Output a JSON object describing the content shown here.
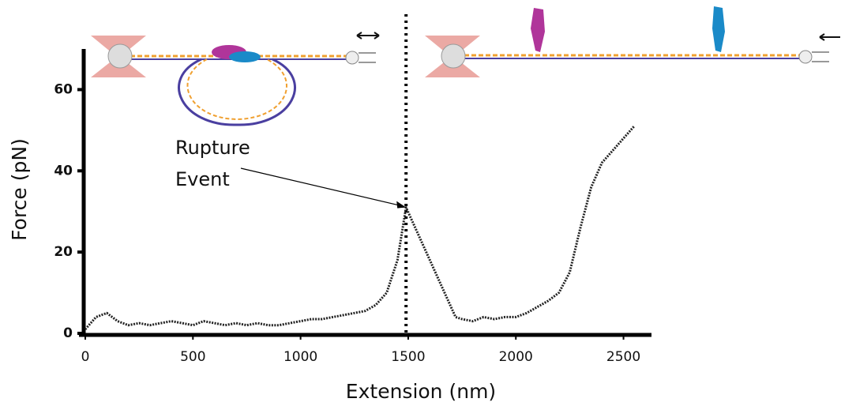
{
  "chart_data": {
    "type": "line",
    "xlabel": "Extension (nm)",
    "ylabel": "Force (pN)",
    "x": [
      0,
      50,
      100,
      150,
      200,
      250,
      300,
      350,
      400,
      450,
      500,
      550,
      600,
      650,
      700,
      750,
      800,
      850,
      900,
      950,
      1000,
      1050,
      1100,
      1150,
      1200,
      1250,
      1300,
      1350,
      1400,
      1450,
      1490,
      1720,
      1750,
      1800,
      1850,
      1900,
      1950,
      2000,
      2050,
      2100,
      2150,
      2200,
      2250,
      2300,
      2350,
      2400,
      2450,
      2500,
      2550
    ],
    "series": [
      {
        "color": "#222222",
        "values": [
          1,
          4,
          5,
          3,
          2,
          2.5,
          2,
          2.5,
          3,
          2.5,
          2,
          3,
          2.5,
          2,
          2.5,
          2,
          2.5,
          2,
          2,
          2.5,
          3,
          3.5,
          3.5,
          4,
          4.5,
          5,
          5.5,
          7,
          10,
          18,
          31,
          4,
          3.5,
          3,
          4,
          3.5,
          4,
          4,
          5,
          6.5,
          8,
          10,
          15,
          26,
          36,
          42,
          45,
          48,
          51
        ]
      }
    ],
    "xlim": [
      0,
      2630
    ],
    "ylim": [
      0,
      70
    ],
    "xticks": [
      0,
      500,
      1000,
      1500,
      2000,
      2500
    ],
    "yticks": [
      0,
      20,
      40,
      60
    ],
    "annotation": {
      "lines": [
        "Rupture",
        "Event"
      ],
      "x": 1490,
      "y": 31
    }
  }
}
